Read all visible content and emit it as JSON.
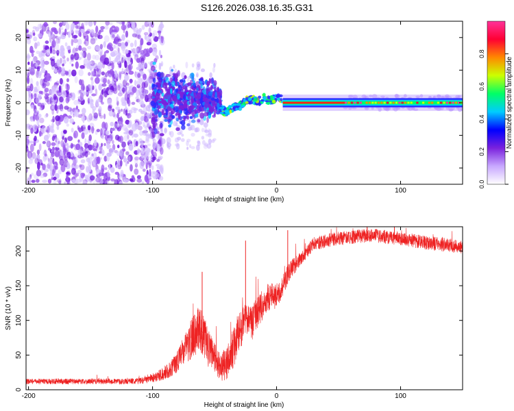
{
  "figure_title": "S126.2026.038.16.35.G31",
  "colors": {
    "snr_line": "#ee2222",
    "spectrum_base": "#7a22dd",
    "ridge_line": "#ff1a1a",
    "axis": "#000000"
  },
  "chart_data": [
    {
      "type": "heatmap",
      "title": "",
      "xlabel": "Height of straight line (km)",
      "ylabel": "Frequency (Hz)",
      "xlim": [
        -202,
        150
      ],
      "ylim": [
        -25,
        25
      ],
      "xticks": [
        -200,
        -100,
        0,
        100
      ],
      "xtick_labels": [
        "-200",
        "-100",
        "0",
        "100"
      ],
      "yticks": [
        -20,
        -10,
        0,
        10,
        20
      ],
      "ytick_labels": [
        "-20",
        "-10",
        "0",
        "10",
        "20"
      ],
      "colorbar": {
        "label": "Normalized spectral amplitude",
        "range": [
          0,
          1
        ],
        "ticks": [
          0,
          0.2,
          0.4,
          0.6,
          0.8
        ],
        "tick_labels": [
          "0.0",
          "0.2",
          "0.4",
          "0.6",
          "0.8"
        ],
        "colormap": [
          "#ffffff",
          "#c8a8ff",
          "#7a22dd",
          "#0000ff",
          "#00ccff",
          "#00ff66",
          "#ccff00",
          "#ff8800",
          "#ff0033",
          "#ff3399"
        ]
      },
      "features": [
        {
          "name": "scattered noise",
          "x_range": [
            -202,
            -100
          ],
          "freq_range": [
            -25,
            25
          ],
          "amplitude": 0.05
        },
        {
          "name": "broadening cluster",
          "x_range": [
            -100,
            -45
          ],
          "freq_range": [
            -8,
            10
          ],
          "amplitude": 0.2
        },
        {
          "name": "converging signal",
          "x_range": [
            -45,
            5
          ],
          "freq_center": [
            -1,
            1
          ],
          "amplitude": 0.45
        },
        {
          "name": "steady tone",
          "x_range": [
            5,
            150
          ],
          "freq_center": 0,
          "amplitude": 0.95
        }
      ]
    },
    {
      "type": "line",
      "title": "",
      "xlabel": "Height of straight line (km)",
      "ylabel": "SNR (10 * v/v)",
      "xlim": [
        -202,
        150
      ],
      "ylim": [
        0,
        235
      ],
      "xticks": [
        -200,
        -100,
        0,
        100
      ],
      "xtick_labels": [
        "-200",
        "-100",
        "0",
        "100"
      ],
      "yticks": [
        0,
        50,
        100,
        150,
        200
      ],
      "ytick_labels": [
        "0",
        "50",
        "100",
        "150",
        "200"
      ],
      "series": [
        {
          "name": "SNR",
          "x": [
            -202,
            -180,
            -160,
            -140,
            -120,
            -105,
            -95,
            -85,
            -75,
            -68,
            -62,
            -58,
            -54,
            -50,
            -45,
            -40,
            -35,
            -30,
            -25,
            -20,
            -15,
            -10,
            -5,
            0,
            5,
            10,
            15,
            20,
            25,
            30,
            40,
            50,
            60,
            70,
            80,
            90,
            100,
            110,
            120,
            130,
            140,
            150
          ],
          "values": [
            12,
            12,
            12,
            12,
            12,
            14,
            20,
            30,
            55,
            75,
            90,
            75,
            55,
            45,
            35,
            35,
            60,
            85,
            100,
            95,
            115,
            125,
            135,
            135,
            150,
            170,
            180,
            190,
            200,
            210,
            215,
            218,
            220,
            222,
            222,
            220,
            218,
            215,
            212,
            210,
            208,
            205
          ],
          "noise": [
            4,
            4,
            4,
            4,
            4,
            5,
            8,
            12,
            22,
            30,
            35,
            30,
            28,
            25,
            22,
            25,
            30,
            30,
            25,
            25,
            25,
            22,
            20,
            18,
            15,
            14,
            12,
            10,
            10,
            10,
            10,
            10,
            10,
            10,
            10,
            10,
            10,
            10,
            10,
            10,
            10,
            10
          ],
          "peaks": [
            {
              "x": -60,
              "y": 170
            },
            {
              "x": -25,
              "y": 215
            },
            {
              "x": 9,
              "y": 230
            },
            {
              "x": 73,
              "y": 235
            },
            {
              "x": 95,
              "y": 236
            }
          ]
        }
      ]
    }
  ]
}
